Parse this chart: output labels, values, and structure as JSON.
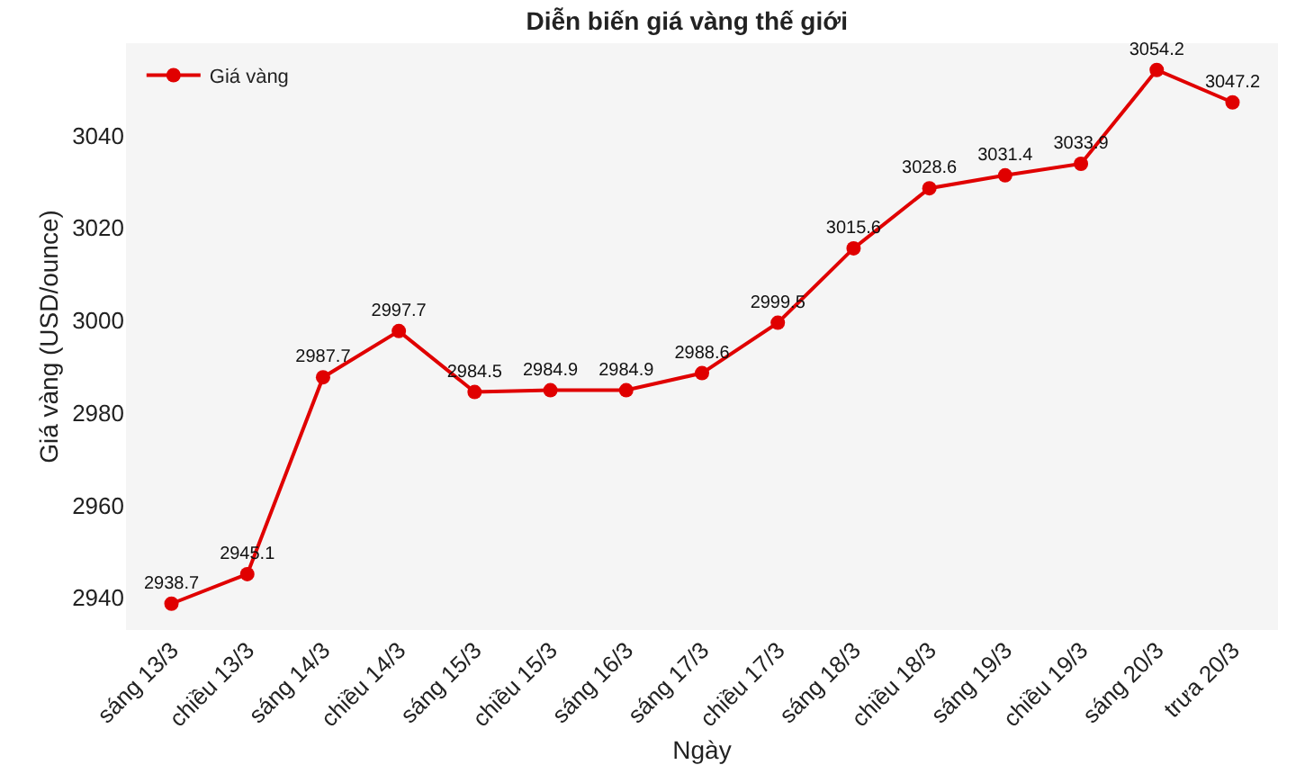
{
  "chart_data": {
    "type": "line",
    "title": "Diễn biến giá vàng thế giới",
    "xlabel": "Ngày",
    "ylabel": "Giá vàng (USD/ounce)",
    "categories": [
      "sáng 13/3",
      "chiều 13/3",
      "sáng 14/3",
      "chiều 14/3",
      "sáng 15/3",
      "chiều 15/3",
      "sáng 16/3",
      "sáng 17/3",
      "chiều 17/3",
      "sáng 18/3",
      "chiều 18/3",
      "sáng 19/3",
      "chiều 19/3",
      "sáng 20/3",
      "trưa 20/3"
    ],
    "series": [
      {
        "name": "Giá vàng",
        "color": "#e00000",
        "values": [
          2938.7,
          2945.1,
          2987.7,
          2997.7,
          2984.5,
          2984.9,
          2984.9,
          2988.6,
          2999.5,
          3015.6,
          3028.6,
          3031.4,
          3033.9,
          3054.2,
          3047.2
        ]
      }
    ],
    "ylim": [
      2933,
      3060
    ],
    "yticks": [
      2940,
      2960,
      2980,
      3000,
      3020,
      3040
    ],
    "grid": false,
    "legend": "top left",
    "marker": "circle",
    "line_style": "solid",
    "data_labels": true
  }
}
